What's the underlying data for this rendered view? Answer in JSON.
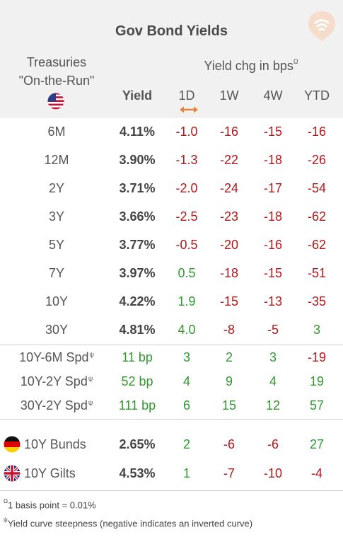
{
  "title": "Gov Bond Yields",
  "header": {
    "treasuries_line1": "Treasuries",
    "treasuries_line2": "\"On-the-Run\"",
    "yield_chg": "Yield chg in bps",
    "yield_chg_mark": "Ω",
    "yield": "Yield",
    "col_1d": "1D",
    "col_1w": "1W",
    "col_4w": "4W",
    "col_ytd": "YTD"
  },
  "treasuries": [
    {
      "label": "6M",
      "yield": "4.11%",
      "d1": "-1.0",
      "w1": "-16",
      "w4": "-15",
      "ytd": "-16"
    },
    {
      "label": "12M",
      "yield": "3.90%",
      "d1": "-1.3",
      "w1": "-22",
      "w4": "-18",
      "ytd": "-26"
    },
    {
      "label": "2Y",
      "yield": "3.71%",
      "d1": "-2.0",
      "w1": "-24",
      "w4": "-17",
      "ytd": "-54"
    },
    {
      "label": "3Y",
      "yield": "3.66%",
      "d1": "-2.5",
      "w1": "-23",
      "w4": "-18",
      "ytd": "-62"
    },
    {
      "label": "5Y",
      "yield": "3.77%",
      "d1": "-0.5",
      "w1": "-20",
      "w4": "-16",
      "ytd": "-62"
    },
    {
      "label": "7Y",
      "yield": "3.97%",
      "d1": "0.5",
      "w1": "-18",
      "w4": "-15",
      "ytd": "-51"
    },
    {
      "label": "10Y",
      "yield": "4.22%",
      "d1": "1.9",
      "w1": "-15",
      "w4": "-13",
      "ytd": "-35"
    },
    {
      "label": "30Y",
      "yield": "4.81%",
      "d1": "4.0",
      "w1": "-8",
      "w4": "-5",
      "ytd": "3"
    }
  ],
  "spreads": [
    {
      "label": "10Y-6M Spd",
      "mark": "ψ",
      "value": "11 bp",
      "d1": "3",
      "w1": "2",
      "w4": "3",
      "ytd": "-19"
    },
    {
      "label": "10Y-2Y Spd",
      "mark": "ψ",
      "value": "52 bp",
      "d1": "4",
      "w1": "9",
      "w4": "4",
      "ytd": "19"
    },
    {
      "label": "30Y-2Y Spd",
      "mark": "ψ",
      "value": "111 bp",
      "d1": "6",
      "w1": "15",
      "w4": "12",
      "ytd": "57"
    }
  ],
  "foreign": [
    {
      "label": "10Y Bunds",
      "flag": "germany-flag-icon",
      "yield": "2.65%",
      "d1": "2",
      "w1": "-6",
      "w4": "-6",
      "ytd": "27"
    },
    {
      "label": "10Y Gilts",
      "flag": "uk-flag-icon",
      "yield": "4.53%",
      "d1": "1",
      "w1": "-7",
      "w4": "-10",
      "ytd": "-4"
    }
  ],
  "footnotes": [
    {
      "mark": "Ω",
      "text": "1 basis point = 0.01%"
    },
    {
      "mark": "ψ",
      "text": "Yield curve steepness (negative indicates an inverted curve)"
    }
  ],
  "colors": {
    "negative": "#b0191c",
    "positive": "#2e9a2e",
    "header_bg": "#f1f1f1"
  }
}
